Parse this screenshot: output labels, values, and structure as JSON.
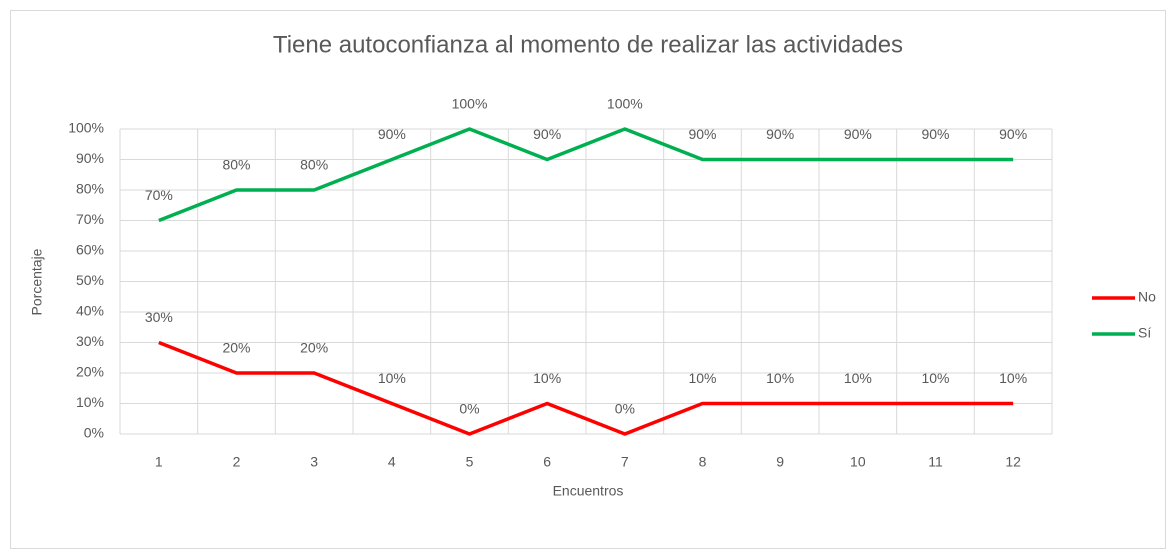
{
  "chart_data": {
    "type": "line",
    "title": "Tiene autoconfianza al momento de realizar las actividades",
    "xlabel": "Encuentros",
    "ylabel": "Porcentaje",
    "categories": [
      "1",
      "2",
      "3",
      "4",
      "5",
      "6",
      "7",
      "8",
      "9",
      "10",
      "11",
      "12"
    ],
    "series": [
      {
        "name": "No",
        "color": "#ff0000",
        "values": [
          30,
          20,
          20,
          10,
          0,
          10,
          0,
          10,
          10,
          10,
          10,
          10
        ],
        "value_labels": [
          "30%",
          "20%",
          "20%",
          "10%",
          "0%",
          "10%",
          "0%",
          "10%",
          "10%",
          "10%",
          "10%",
          "10%"
        ]
      },
      {
        "name": "Sí",
        "color": "#00b050",
        "values": [
          70,
          80,
          80,
          90,
          100,
          90,
          100,
          90,
          90,
          90,
          90,
          90
        ],
        "value_labels": [
          "70%",
          "80%",
          "80%",
          "90%",
          "100%",
          "90%",
          "100%",
          "90%",
          "90%",
          "90%",
          "90%",
          "90%"
        ]
      }
    ],
    "ylim": [
      0,
      100
    ],
    "yticks": [
      {
        "value": 0,
        "label": "0%"
      },
      {
        "value": 10,
        "label": "10%"
      },
      {
        "value": 20,
        "label": "20%"
      },
      {
        "value": 30,
        "label": "30%"
      },
      {
        "value": 40,
        "label": "40%"
      },
      {
        "value": 50,
        "label": "50%"
      },
      {
        "value": 60,
        "label": "60%"
      },
      {
        "value": 70,
        "label": "70%"
      },
      {
        "value": 80,
        "label": "80%"
      },
      {
        "value": 90,
        "label": "90%"
      },
      {
        "value": 100,
        "label": "100%"
      }
    ],
    "grid": true,
    "legend": "right"
  }
}
